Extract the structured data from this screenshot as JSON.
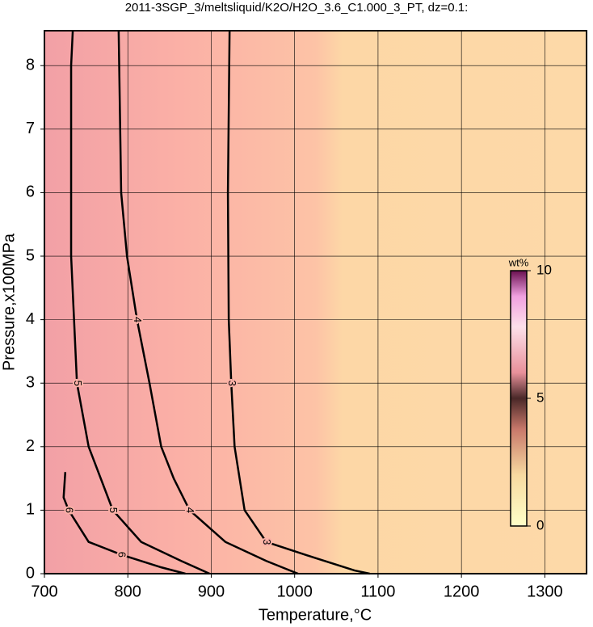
{
  "chart_data": {
    "type": "contour",
    "title": "2011-3SGP_3/meltsliquid/K2O/H2O_3.6_C1.000_3_PT, dz=0.1:",
    "x_label": "Temperature,°C",
    "y_label": "Pressure,x100MPa",
    "xlim": [
      700,
      1350
    ],
    "ylim": [
      0,
      8.55
    ],
    "xticks": [
      700,
      800,
      900,
      1000,
      1100,
      1200,
      1300
    ],
    "yticks": [
      0,
      1,
      2,
      3,
      4,
      5,
      6,
      7,
      8
    ],
    "grid": true,
    "contours": [
      {
        "level": 3,
        "x": [
          922,
          920,
          921,
          924,
          928,
          940,
          966,
          1024,
          1072,
          1090
        ],
        "y": [
          8.55,
          6,
          4,
          3,
          2,
          1,
          0.5,
          0.25,
          0.05,
          0
        ]
      },
      {
        "level": 4,
        "x": [
          789,
          792,
          799,
          811,
          826,
          840,
          855,
          874,
          917,
          966,
          1004
        ],
        "y": [
          8.55,
          6,
          5,
          4,
          3,
          2,
          1.5,
          1,
          0.5,
          0.2,
          0
        ]
      },
      {
        "level": 5,
        "x": [
          734,
          732,
          732,
          739,
          753,
          782,
          816,
          864,
          898
        ],
        "y": [
          8.55,
          8,
          5,
          3,
          2,
          1,
          0.5,
          0.2,
          0
        ]
      },
      {
        "level": 6,
        "x": [
          725,
          723,
          729,
          753,
          792,
          840,
          869
        ],
        "y": [
          1.6,
          1.2,
          1,
          0.5,
          0.3,
          0.1,
          0
        ]
      }
    ],
    "colorbar": {
      "label": "wt%",
      "lim": [
        0,
        10
      ],
      "ticks": [
        0,
        5,
        10
      ]
    }
  }
}
